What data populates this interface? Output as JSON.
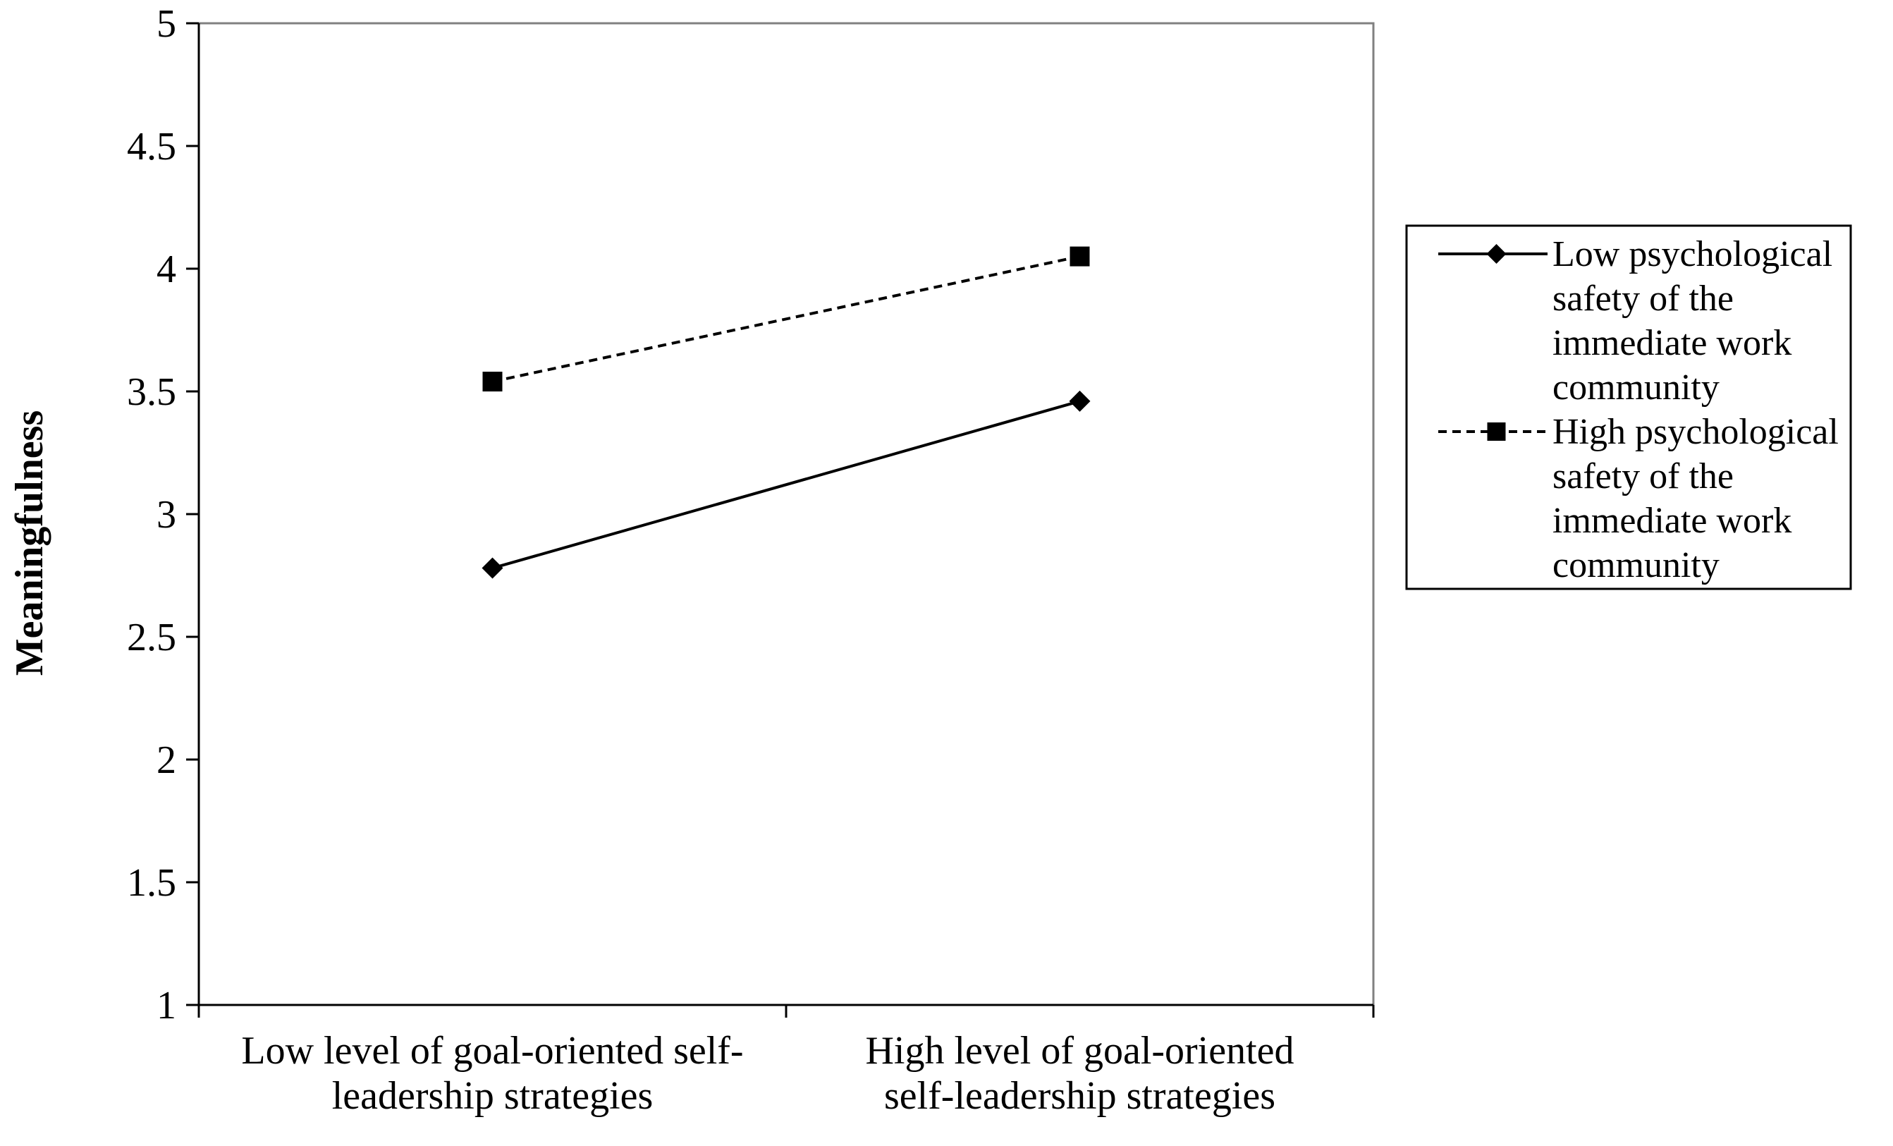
{
  "chart_data": {
    "type": "line",
    "categories": [
      [
        "Low level of goal-oriented self-",
        "leadership strategies"
      ],
      [
        "High level of goal-oriented",
        "self-leadership strategies"
      ]
    ],
    "ylabel": "Meaningfulness",
    "xlabel": "",
    "ylim": [
      1,
      5
    ],
    "yticks": [
      "1",
      "1.5",
      "2",
      "2.5",
      "3",
      "3.5",
      "4",
      "4.5",
      "5"
    ],
    "grid": false,
    "legend_position": "right",
    "series": [
      {
        "name": [
          "Low psychological",
          "safety of the",
          "immediate work",
          "community"
        ],
        "values": [
          2.78,
          3.46
        ],
        "marker": "diamond",
        "line_style": "solid",
        "color": "#000000"
      },
      {
        "name": [
          "High psychological",
          "safety of the",
          "immediate work",
          "community"
        ],
        "values": [
          3.54,
          4.05
        ],
        "marker": "square",
        "line_style": "dashed",
        "color": "#000000"
      }
    ]
  }
}
